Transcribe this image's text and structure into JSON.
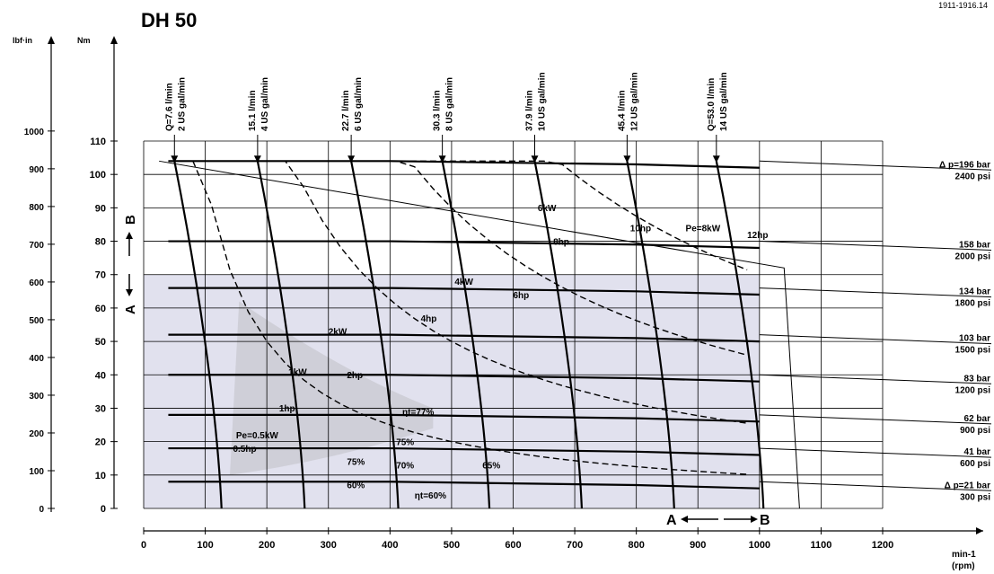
{
  "doc_ref": "1911-1916.14",
  "chart_data": {
    "type": "line",
    "title": "DH 50",
    "xlabel": "min-1 (rpm)",
    "xlabel_top": "min-1",
    "xlabel_bottom": "(rpm)",
    "ylabel": "Nm",
    "ylabel_alt": "lbf·in",
    "xlim": [
      0,
      1200
    ],
    "ylim": [
      0,
      110
    ],
    "x_ticks": [
      0,
      100,
      200,
      300,
      400,
      500,
      600,
      700,
      800,
      900,
      1000,
      1100,
      1200
    ],
    "y_ticks": [
      0,
      10,
      20,
      30,
      40,
      50,
      60,
      70,
      80,
      90,
      100,
      110
    ],
    "y_alt_ticks": [
      0,
      100,
      200,
      300,
      400,
      500,
      600,
      700,
      800,
      900,
      1000
    ],
    "grid": true,
    "direction_labels": {
      "a": "A",
      "b": "B",
      "vertical_a": "A",
      "vertical_b": "B"
    },
    "flow_lines": [
      {
        "l1": "Q=7.6 l/min",
        "l2": "2 US gal/min",
        "x": 50
      },
      {
        "l1": "15.1 l/min",
        "l2": "4 US gal/min",
        "x": 185
      },
      {
        "l1": "22.7 l/min",
        "l2": "6 US gal/min",
        "x": 337
      },
      {
        "l1": "30.3 l/min",
        "l2": "8 US gal/min",
        "x": 485
      },
      {
        "l1": "37.9 l/min",
        "l2": "10 US gal/min",
        "x": 635
      },
      {
        "l1": "45.4 l/min",
        "l2": "12 US gal/min",
        "x": 785
      },
      {
        "l1": "Q=53.0 l/min",
        "l2": "14 US gal/min",
        "x": 930
      }
    ],
    "series": [
      {
        "name": "Δ p=196 bar / 2400 psi",
        "values": [
          104,
          104,
          104,
          103.5,
          103,
          102
        ]
      },
      {
        "name": "158 bar / 2000 psi",
        "values": [
          80,
          80,
          80,
          79.5,
          79,
          78
        ]
      },
      {
        "name": "134 bar / 1800 psi",
        "values": [
          66,
          66,
          66,
          65.5,
          65,
          64
        ]
      },
      {
        "name": "103 bar / 1500 psi",
        "values": [
          52,
          52,
          52,
          51.5,
          51,
          50
        ]
      },
      {
        "name": "83 bar / 1200 psi",
        "values": [
          40,
          40,
          40,
          39.5,
          39,
          38
        ]
      },
      {
        "name": "62 bar / 900 psi",
        "values": [
          28,
          28,
          28,
          27.5,
          27,
          26
        ]
      },
      {
        "name": "41 bar / 600 psi",
        "values": [
          18,
          18,
          18,
          17.5,
          17,
          16
        ]
      },
      {
        "name": "Δ p=21 bar / 300 psi",
        "values": [
          8,
          8,
          8,
          7.5,
          7,
          6
        ]
      }
    ],
    "pressure_labels": [
      {
        "bar": "Δ p=196 bar",
        "psi": "2400 psi",
        "y": 104
      },
      {
        "bar": "158 bar",
        "psi": "2000 psi",
        "y": 80
      },
      {
        "bar": "134 bar",
        "psi": "1800 psi",
        "y": 66
      },
      {
        "bar": "103 bar",
        "psi": "1500 psi",
        "y": 52
      },
      {
        "bar": "83 bar",
        "psi": "1200 psi",
        "y": 40
      },
      {
        "bar": "62 bar",
        "psi": "900 psi",
        "y": 28
      },
      {
        "bar": "41 bar",
        "psi": "600 psi",
        "y": 18
      },
      {
        "bar": "Δ p=21 bar",
        "psi": "300 psi",
        "y": 8
      }
    ],
    "annotations": [
      {
        "text": "6kW",
        "x": 640,
        "y": 89
      },
      {
        "text": "10hp",
        "x": 790,
        "y": 83
      },
      {
        "text": "8hp",
        "x": 665,
        "y": 79
      },
      {
        "text": "Pe=8kW",
        "x": 880,
        "y": 83
      },
      {
        "text": "12hp",
        "x": 980,
        "y": 81
      },
      {
        "text": "4kW",
        "x": 505,
        "y": 67
      },
      {
        "text": "6hp",
        "x": 600,
        "y": 63
      },
      {
        "text": "4hp",
        "x": 450,
        "y": 56
      },
      {
        "text": "2kW",
        "x": 300,
        "y": 52
      },
      {
        "text": "1kW",
        "x": 235,
        "y": 40
      },
      {
        "text": "2hp",
        "x": 330,
        "y": 39
      },
      {
        "text": "1hp",
        "x": 220,
        "y": 29
      },
      {
        "text": "ηt=77%",
        "x": 420,
        "y": 28
      },
      {
        "text": "Pe=0.5kW",
        "x": 150,
        "y": 21
      },
      {
        "text": "0.5hp",
        "x": 145,
        "y": 17
      },
      {
        "text": "75%",
        "x": 410,
        "y": 19
      },
      {
        "text": "75%",
        "x": 330,
        "y": 13
      },
      {
        "text": "70%",
        "x": 410,
        "y": 12
      },
      {
        "text": "65%",
        "x": 550,
        "y": 12
      },
      {
        "text": "60%",
        "x": 330,
        "y": 6
      },
      {
        "text": "ηt=60%",
        "x": 440,
        "y": 3
      }
    ]
  }
}
